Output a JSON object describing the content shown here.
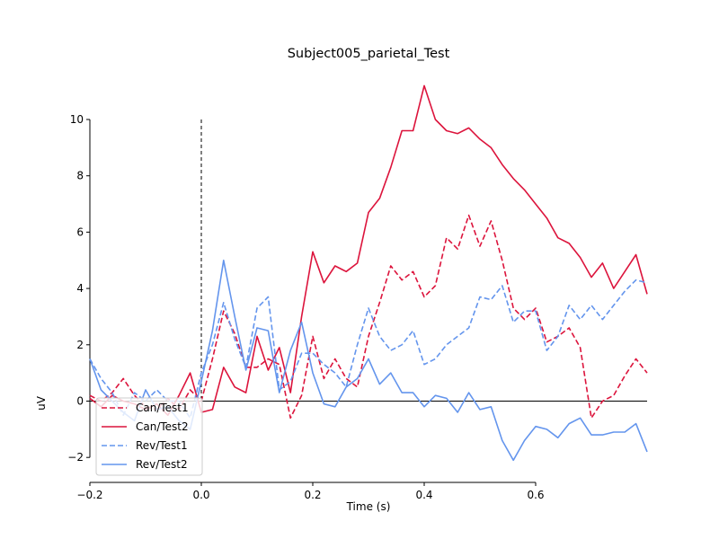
{
  "chart_data": {
    "type": "line",
    "title": "Subject005_parietal_Test",
    "xlabel": "Time (s)",
    "ylabel": "uV",
    "xlim": [
      -0.2,
      0.8
    ],
    "ylim": [
      -2.7,
      10.8
    ],
    "xticks": [
      -0.2,
      0.0,
      0.2,
      0.4,
      0.6
    ],
    "xtick_labels": [
      "−0.2",
      "0.0",
      "0.2",
      "0.4",
      "0.6"
    ],
    "yticks": [
      -2,
      0,
      2,
      4,
      6,
      8,
      10
    ],
    "ytick_labels": [
      "−2",
      "0",
      "2",
      "4",
      "6",
      "8",
      "10"
    ],
    "grid": false,
    "legend_position": "lower-left",
    "x": [
      -0.2,
      -0.18,
      -0.16,
      -0.14,
      -0.12,
      -0.1,
      -0.08,
      -0.06,
      -0.04,
      -0.02,
      0.0,
      0.02,
      0.04,
      0.06,
      0.08,
      0.1,
      0.12,
      0.14,
      0.16,
      0.18,
      0.2,
      0.22,
      0.24,
      0.26,
      0.28,
      0.3,
      0.32,
      0.34,
      0.36,
      0.38,
      0.4,
      0.42,
      0.44,
      0.46,
      0.48,
      0.5,
      0.52,
      0.54,
      0.56,
      0.58,
      0.6,
      0.62,
      0.64,
      0.66,
      0.68,
      0.7,
      0.72,
      0.74,
      0.76,
      0.78,
      0.8
    ],
    "series": [
      {
        "name": "Can/Test1",
        "color": "#dc143c",
        "dash": "dashed",
        "values": [
          0.2,
          0.0,
          0.3,
          0.8,
          0.2,
          -0.2,
          -0.3,
          0.1,
          -0.3,
          0.4,
          0.0,
          1.5,
          3.2,
          2.4,
          1.2,
          1.2,
          1.5,
          1.3,
          -0.6,
          0.2,
          2.3,
          0.8,
          1.5,
          0.8,
          0.5,
          2.3,
          3.5,
          4.8,
          4.3,
          4.6,
          3.7,
          4.1,
          5.8,
          5.4,
          6.6,
          5.5,
          6.4,
          5.0,
          3.3,
          2.9,
          3.3,
          2.1,
          2.3,
          2.6,
          1.9,
          -0.6,
          0.0,
          0.2,
          0.9,
          1.5,
          1.0
        ]
      },
      {
        "name": "Can/Test2",
        "color": "#dc143c",
        "dash": "solid",
        "values": [
          0.1,
          -0.2,
          0.2,
          0.0,
          -0.1,
          -0.3,
          -0.1,
          -0.5,
          0.2,
          1.0,
          -0.4,
          -0.3,
          1.2,
          0.5,
          0.3,
          2.3,
          1.1,
          1.9,
          0.3,
          3.0,
          5.3,
          4.2,
          4.8,
          4.6,
          4.9,
          6.7,
          7.2,
          8.3,
          9.6,
          9.6,
          11.2,
          10.0,
          9.6,
          9.5,
          9.7,
          9.3,
          9.0,
          8.4,
          7.9,
          7.5,
          7.0,
          6.5,
          5.8,
          5.6,
          5.1,
          4.4,
          4.9,
          4.0,
          4.6,
          5.2,
          3.8
        ]
      },
      {
        "name": "Rev/Test1",
        "color": "#6495ed",
        "dash": "dashed",
        "values": [
          1.5,
          0.8,
          0.3,
          -0.5,
          0.3,
          0.0,
          0.4,
          0.0,
          0.0,
          -0.6,
          1.0,
          2.0,
          3.5,
          2.2,
          1.2,
          3.3,
          3.7,
          0.4,
          0.7,
          1.7,
          1.7,
          1.3,
          1.0,
          0.5,
          2.0,
          3.3,
          2.3,
          1.8,
          2.0,
          2.5,
          1.3,
          1.5,
          2.0,
          2.3,
          2.6,
          3.7,
          3.6,
          4.1,
          2.8,
          3.2,
          3.2,
          1.8,
          2.3,
          3.4,
          2.9,
          3.4,
          2.9,
          3.4,
          3.9,
          4.3,
          4.2
        ]
      },
      {
        "name": "Rev/Test2",
        "color": "#6495ed",
        "dash": "solid",
        "values": [
          1.5,
          0.4,
          0.0,
          -0.4,
          -0.7,
          0.4,
          -0.3,
          -0.2,
          -0.7,
          -1.0,
          0.7,
          2.5,
          5.0,
          3.0,
          1.1,
          2.6,
          2.5,
          0.3,
          1.8,
          2.8,
          1.0,
          -0.1,
          -0.2,
          0.5,
          0.8,
          1.5,
          0.6,
          1.0,
          0.3,
          0.3,
          -0.2,
          0.2,
          0.1,
          -0.4,
          0.3,
          -0.3,
          -0.2,
          -1.4,
          -2.1,
          -1.4,
          -0.9,
          -1.0,
          -1.3,
          -0.8,
          -0.6,
          -1.2,
          -1.2,
          -1.1,
          -1.1,
          -0.8,
          -1.8
        ]
      }
    ],
    "annotations": {
      "stimulus_onset_x": 0.0,
      "zero_line_y": 0.0
    }
  }
}
